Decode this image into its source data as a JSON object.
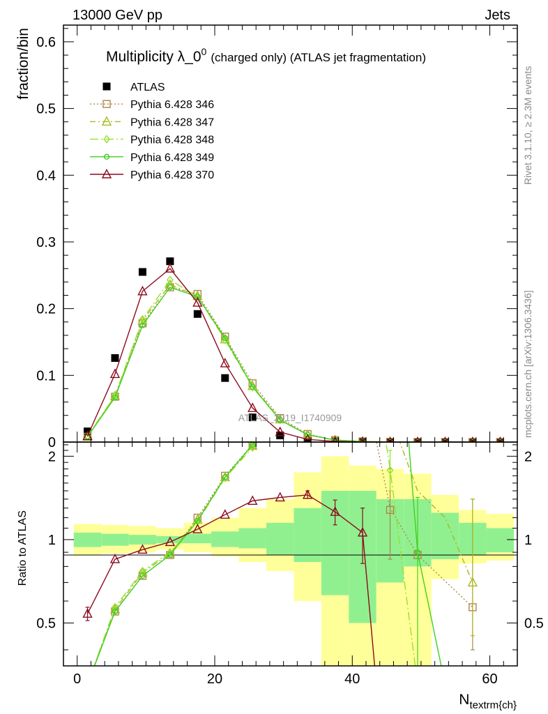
{
  "header": {
    "left": "13000 GeV pp",
    "right": "Jets"
  },
  "side_labels": {
    "rivet": "Rivet 3.1.10, ≥ 2.3M events",
    "mcplots": "mcplots.cern.ch [arXiv:1306.3436]"
  },
  "colors": {
    "ATLAS": "#000000",
    "Pythia 6.428 346": "#b0854a",
    "Pythia 6.428 347": "#a8b820",
    "Pythia 6.428 348": "#98e030",
    "Pythia 6.428 349": "#40d020",
    "Pythia 6.428 370": "#8b0a1e",
    "band_inner": "#90f090",
    "band_outer": "#ffff99"
  },
  "chart_data": [
    {
      "type": "scatter",
      "title_main": "Multiplicity λ_0",
      "title_sup": "0",
      "title_rest": "(charged only) (ATLAS jet fragmentation)",
      "ylabel": "fraction/bin",
      "xlim": [
        -2,
        64
      ],
      "ylim": [
        0,
        0.625
      ],
      "yticks": [
        0,
        0.1,
        0.2,
        0.3,
        0.4,
        0.5,
        0.6
      ],
      "ytick_labels": [
        "0",
        "0.1",
        "0.2",
        "0.3",
        "0.4",
        "0.5",
        "0.6"
      ],
      "watermark": "ATLAS_2019_I1740909",
      "legend_position": "top-left",
      "x": [
        1.5,
        5.5,
        9.5,
        13.5,
        17.5,
        21.5,
        25.5,
        29.5,
        33.5,
        37.5,
        41.5,
        45.5,
        49.5,
        53.5,
        57.5,
        61.5
      ],
      "series": [
        {
          "name": "ATLAS",
          "marker": "square-filled",
          "line": "none",
          "values": [
            0.016,
            0.126,
            0.255,
            0.271,
            0.192,
            0.096,
            0.037,
            0.01,
            0.002,
            0.001,
            0.0003,
            0.0002,
            0.0001,
            0.0001,
            0.0001,
            0.0001
          ]
        },
        {
          "name": "Pythia 6.428 346",
          "marker": "square-open",
          "line": "dotted",
          "values": [
            0.008,
            0.068,
            0.178,
            0.232,
            0.222,
            0.158,
            0.088,
            0.036,
            0.012,
            0.003,
            0.001,
            0.0003,
            0.0001,
            5e-05,
            2e-05,
            1e-05
          ]
        },
        {
          "name": "Pythia 6.428 347",
          "marker": "triangle-open",
          "line": "dashdot",
          "values": [
            0.008,
            0.069,
            0.182,
            0.236,
            0.219,
            0.154,
            0.084,
            0.034,
            0.011,
            0.003,
            0.0008,
            0.0002,
            0.0001,
            4e-05,
            1e-05,
            1e-05
          ]
        },
        {
          "name": "Pythia 6.428 348",
          "marker": "diamond-open",
          "line": "longdashdot",
          "values": [
            0.009,
            0.07,
            0.184,
            0.243,
            0.218,
            0.153,
            0.082,
            0.033,
            0.011,
            0.003,
            0.0008,
            0.0002,
            0.0001,
            4e-05,
            1e-05,
            1e-05
          ]
        },
        {
          "name": "Pythia 6.428 349",
          "marker": "circle-open",
          "line": "solid",
          "values": [
            0.008,
            0.067,
            0.175,
            0.232,
            0.218,
            0.156,
            0.083,
            0.033,
            0.011,
            0.003,
            0.0008,
            0.0002,
            0.0001,
            4e-05,
            1e-05,
            1e-05
          ]
        },
        {
          "name": "Pythia 6.428 370",
          "marker": "triangle-open",
          "line": "solid",
          "values": [
            0.009,
            0.102,
            0.226,
            0.26,
            0.209,
            0.118,
            0.051,
            0.015,
            0.004,
            0.001,
            0.0002,
            5e-05,
            1e-05,
            5e-06,
            1e-06,
            1e-06
          ]
        }
      ]
    },
    {
      "type": "line",
      "ylabel": "Ratio to ATLAS",
      "xlabel": "N",
      "xlabel_sub": "textrm{ch}",
      "xlim": [
        -2,
        64
      ],
      "ylim": [
        0.35,
        2.25
      ],
      "xticks": [
        0,
        20,
        40,
        60
      ],
      "xtick_labels": [
        "0",
        "20",
        "40",
        "60"
      ],
      "yticks": [
        0.5,
        1,
        2
      ],
      "ytick_labels": [
        "0.5",
        "1",
        "2"
      ],
      "bands": {
        "edges": [
          -0.5,
          3.5,
          7.5,
          11.5,
          15.5,
          19.5,
          23.5,
          27.5,
          31.5,
          35.5,
          39.5,
          43.5,
          47.5,
          51.5,
          55.5,
          59.5,
          63.5
        ],
        "inner_lo": [
          0.94,
          0.95,
          0.96,
          0.97,
          0.97,
          0.94,
          0.93,
          0.88,
          0.83,
          0.63,
          0.5,
          0.7,
          0.8,
          0.85,
          0.88,
          0.9
        ],
        "inner_hi": [
          1.06,
          1.05,
          1.04,
          1.03,
          1.05,
          1.07,
          1.1,
          1.15,
          1.3,
          1.5,
          1.5,
          1.4,
          1.4,
          1.25,
          1.15,
          1.1
        ],
        "outer_lo": [
          0.88,
          0.89,
          0.9,
          0.92,
          0.9,
          0.87,
          0.83,
          0.77,
          0.6,
          0.3,
          0.3,
          0.3,
          0.3,
          0.72,
          0.82,
          0.84
        ],
        "outer_hi": [
          1.14,
          1.13,
          1.12,
          1.1,
          1.15,
          1.2,
          1.3,
          1.4,
          1.75,
          2.0,
          1.85,
          1.8,
          1.73,
          1.45,
          1.28,
          1.24
        ]
      },
      "series": [
        {
          "name": "Pythia 6.428 346",
          "points": [
            [
              1.5,
              0.3
            ],
            [
              5.5,
              0.55
            ],
            [
              9.5,
              0.74
            ],
            [
              13.5,
              0.88
            ],
            [
              17.5,
              1.2
            ],
            [
              21.5,
              1.7
            ],
            [
              25.5,
              2.2
            ],
            [
              27.0,
              2.6
            ],
            [
              43.0,
              2.6
            ],
            [
              45.5,
              1.3
            ],
            [
              49.5,
              0.88
            ],
            [
              57.5,
              0.57
            ]
          ],
          "markers": [
            [
              5.5,
              0.55
            ],
            [
              9.5,
              0.74
            ],
            [
              13.5,
              0.88
            ],
            [
              17.5,
              1.2
            ],
            [
              21.5,
              1.7
            ],
            [
              25.5,
              2.2
            ],
            [
              45.5,
              1.28
            ],
            [
              49.5,
              0.88
            ],
            [
              57.5,
              0.57
            ]
          ],
          "errors": [
            [
              45.5,
              0.85,
              1.8
            ],
            [
              57.5,
              0.4,
              1.4
            ]
          ]
        },
        {
          "name": "Pythia 6.428 347",
          "points": [
            [
              1.5,
              0.3
            ],
            [
              5.5,
              0.56
            ],
            [
              9.5,
              0.76
            ],
            [
              13.5,
              0.89
            ],
            [
              17.5,
              1.18
            ],
            [
              21.5,
              1.68
            ],
            [
              25.5,
              2.18
            ],
            [
              27.0,
              2.6
            ],
            [
              46.0,
              2.6
            ],
            [
              49.5,
              1.5
            ],
            [
              53.5,
              1.2
            ],
            [
              57.5,
              0.7
            ]
          ],
          "markers": [
            [
              5.5,
              0.56
            ],
            [
              9.5,
              0.76
            ],
            [
              13.5,
              0.89
            ],
            [
              17.5,
              1.18
            ],
            [
              21.5,
              1.68
            ],
            [
              25.5,
              2.18
            ],
            [
              57.5,
              0.7
            ]
          ],
          "errors": [
            [
              57.5,
              0.45,
              1.4
            ]
          ]
        },
        {
          "name": "Pythia 6.428 348",
          "points": [
            [
              1.5,
              0.3
            ],
            [
              5.5,
              0.57
            ],
            [
              9.5,
              0.77
            ],
            [
              13.5,
              0.9
            ],
            [
              17.5,
              1.16
            ],
            [
              21.5,
              1.67
            ],
            [
              25.5,
              2.15
            ],
            [
              27.0,
              2.6
            ],
            [
              44.5,
              2.6
            ],
            [
              45.5,
              1.8
            ],
            [
              49.5,
              0.3
            ]
          ],
          "markers": [
            [
              5.5,
              0.57
            ],
            [
              9.5,
              0.77
            ],
            [
              13.5,
              0.9
            ],
            [
              17.5,
              1.16
            ],
            [
              21.5,
              1.67
            ],
            [
              25.5,
              2.15
            ],
            [
              45.5,
              1.78
            ]
          ],
          "errors": [
            [
              45.5,
              1.5,
              2.1
            ]
          ]
        },
        {
          "name": "Pythia 6.428 349",
          "points": [
            [
              1.5,
              0.3
            ],
            [
              5.5,
              0.55
            ],
            [
              9.5,
              0.74
            ],
            [
              13.5,
              0.88
            ],
            [
              17.5,
              1.17
            ],
            [
              21.5,
              1.68
            ],
            [
              25.5,
              2.2
            ],
            [
              27.0,
              2.6
            ],
            [
              48.0,
              2.6
            ],
            [
              49.5,
              0.9
            ],
            [
              53.5,
              0.3
            ]
          ],
          "markers": [
            [
              5.5,
              0.55
            ],
            [
              9.5,
              0.74
            ],
            [
              13.5,
              0.88
            ],
            [
              17.5,
              1.17
            ],
            [
              21.5,
              1.68
            ],
            [
              25.5,
              2.2
            ],
            [
              49.5,
              0.9
            ]
          ],
          "errors": [
            [
              49.5,
              0.3,
              1.42
            ]
          ]
        },
        {
          "name": "Pythia 6.428 370",
          "points": [
            [
              1.5,
              0.54
            ],
            [
              5.5,
              0.85
            ],
            [
              9.5,
              0.92
            ],
            [
              13.5,
              0.98
            ],
            [
              17.5,
              1.09
            ],
            [
              21.5,
              1.23
            ],
            [
              25.5,
              1.38
            ],
            [
              29.5,
              1.42
            ],
            [
              33.5,
              1.45
            ],
            [
              37.5,
              1.26
            ],
            [
              41.5,
              1.06
            ],
            [
              43.5,
              0.3
            ]
          ],
          "markers": [
            [
              1.5,
              0.54
            ],
            [
              5.5,
              0.85
            ],
            [
              9.5,
              0.92
            ],
            [
              13.5,
              0.98
            ],
            [
              17.5,
              1.09
            ],
            [
              21.5,
              1.23
            ],
            [
              25.5,
              1.38
            ],
            [
              29.5,
              1.42
            ],
            [
              33.5,
              1.45
            ],
            [
              37.5,
              1.26
            ],
            [
              41.5,
              1.06
            ]
          ],
          "errors": [
            [
              1.5,
              0.51,
              0.57
            ],
            [
              33.5,
              1.41,
              1.5
            ],
            [
              37.5,
              1.13,
              1.39
            ],
            [
              41.5,
              0.82,
              1.3
            ]
          ]
        }
      ]
    }
  ]
}
